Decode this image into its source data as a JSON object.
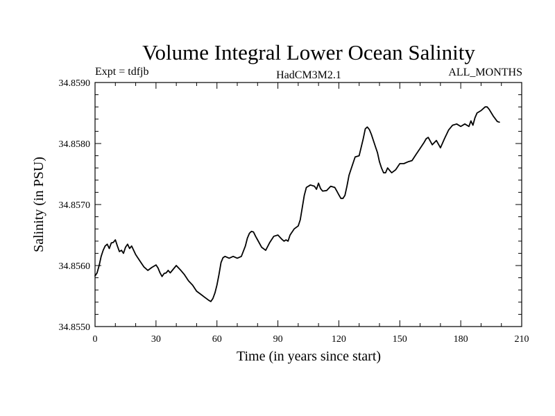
{
  "chart_data": {
    "type": "line",
    "title": "Volume Integral Lower Ocean Salinity",
    "subtitle_left": "Expt = tdfjb",
    "subtitle_center": "HadCM3M2.1",
    "subtitle_right": "ALL_MONTHS",
    "xlabel": "Time (in years since start)",
    "ylabel": "Salinity (in PSU)",
    "xlim": [
      0,
      210
    ],
    "ylim": [
      34.855,
      34.859
    ],
    "xticks": [
      0,
      30,
      60,
      90,
      120,
      150,
      180,
      210
    ],
    "xtick_labels": [
      "0",
      "30",
      "60",
      "90",
      "120",
      "150",
      "180",
      "210"
    ],
    "yticks": [
      34.855,
      34.856,
      34.857,
      34.858,
      34.859
    ],
    "ytick_labels": [
      "34.8550",
      "34.8560",
      "34.8570",
      "34.8580",
      "34.8590"
    ],
    "series": [
      {
        "name": "salinity",
        "color": "#000000",
        "x": [
          0,
          1,
          2,
          3,
          4,
          5,
          6,
          7,
          8,
          9,
          10,
          11,
          12,
          13,
          14,
          15,
          16,
          17,
          18,
          20,
          22,
          24,
          26,
          28,
          30,
          31,
          32,
          33,
          34,
          35,
          36,
          37,
          38,
          40,
          42,
          44,
          46,
          48,
          50,
          52,
          54,
          56,
          57,
          58,
          59,
          60,
          61,
          62,
          63,
          64,
          66,
          68,
          70,
          72,
          74,
          75,
          76,
          77,
          78,
          79,
          80,
          82,
          84,
          86,
          88,
          90,
          92,
          93,
          94,
          95,
          96,
          98,
          100,
          101,
          102,
          103,
          104,
          106,
          108,
          109,
          110,
          111,
          112,
          114,
          116,
          118,
          119,
          120,
          121,
          122,
          123,
          124,
          125,
          126,
          128,
          130,
          132,
          133,
          134,
          135,
          136,
          137,
          138,
          139,
          140,
          141,
          142,
          143,
          144,
          145,
          146,
          148,
          150,
          152,
          154,
          156,
          158,
          160,
          162,
          163,
          164,
          165,
          166,
          168,
          170,
          172,
          174,
          176,
          178,
          180,
          182,
          184,
          185,
          186,
          187,
          188,
          190,
          192,
          193,
          194,
          196,
          198,
          199
        ],
        "y": [
          34.85583,
          34.85588,
          34.856,
          34.85615,
          34.85625,
          34.85632,
          34.85635,
          34.85628,
          34.85637,
          34.85638,
          34.85642,
          34.85632,
          34.85623,
          34.85625,
          34.8562,
          34.8563,
          34.85635,
          34.85628,
          34.85632,
          34.85618,
          34.85608,
          34.85598,
          34.85592,
          34.85597,
          34.85601,
          34.85596,
          34.85588,
          34.85582,
          34.85587,
          34.85588,
          34.85592,
          34.85588,
          34.85592,
          34.856,
          34.85593,
          34.85585,
          34.85575,
          34.85568,
          34.85558,
          34.85553,
          34.85548,
          34.85543,
          34.85541,
          34.85546,
          34.85555,
          34.85568,
          34.85585,
          34.85605,
          34.85613,
          34.85615,
          34.85612,
          34.85615,
          34.85612,
          34.85615,
          34.85632,
          34.85645,
          34.85653,
          34.85656,
          34.85655,
          34.85648,
          34.85642,
          34.8563,
          34.85625,
          34.85638,
          34.85648,
          34.8565,
          34.85643,
          34.8564,
          34.85642,
          34.8564,
          34.8565,
          34.8566,
          34.85665,
          34.85675,
          34.85695,
          34.85715,
          34.85728,
          34.85732,
          34.8573,
          34.85725,
          34.85735,
          34.85726,
          34.85722,
          34.85723,
          34.8573,
          34.85728,
          34.85722,
          34.85716,
          34.8571,
          34.8571,
          34.85715,
          34.8573,
          34.85748,
          34.85758,
          34.85778,
          34.8578,
          34.85808,
          34.85824,
          34.85827,
          34.85823,
          34.85815,
          34.85805,
          34.85795,
          34.85785,
          34.8577,
          34.8576,
          34.85752,
          34.85752,
          34.8576,
          34.85756,
          34.85752,
          34.85757,
          34.85767,
          34.85767,
          34.8577,
          34.85772,
          34.85782,
          34.85792,
          34.85802,
          34.85808,
          34.8581,
          34.85804,
          34.85798,
          34.85805,
          34.85793,
          34.85808,
          34.85822,
          34.8583,
          34.85832,
          34.85828,
          34.85832,
          34.85828,
          34.85837,
          34.8583,
          34.85842,
          34.8585,
          34.85854,
          34.8586,
          34.8586,
          34.85856,
          34.85845,
          34.85836,
          34.85835
        ]
      }
    ]
  }
}
